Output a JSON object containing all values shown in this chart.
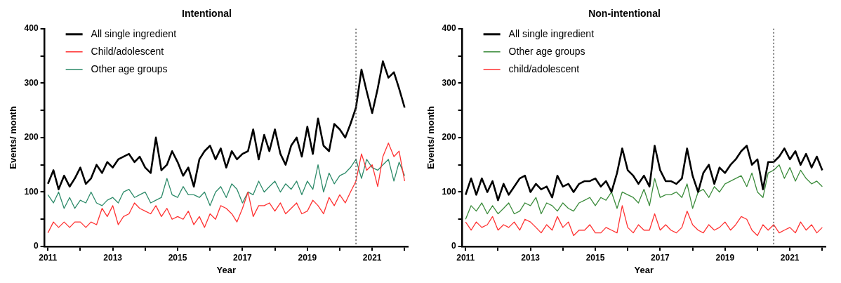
{
  "chart_data": [
    {
      "type": "line",
      "title": "Intentional",
      "xlabel": "Year",
      "ylabel": "Events/ month",
      "xlim": [
        2010.9,
        2022.1
      ],
      "ylim": [
        0,
        400
      ],
      "xticks": [
        2011,
        {
          "value": 2012,
          "label": null
        },
        2013,
        {
          "value": 2014,
          "label": null
        },
        2015,
        {
          "value": 2016,
          "label": null
        },
        2017,
        {
          "value": 2018,
          "label": null
        },
        2019,
        {
          "value": 2020,
          "label": null
        },
        2021,
        {
          "value": 2022,
          "label": null
        }
      ],
      "yticks": [
        0,
        {
          "value": 50,
          "label": null
        },
        100,
        {
          "value": 150,
          "label": null
        },
        200,
        {
          "value": 250,
          "label": null
        },
        300,
        {
          "value": 350,
          "label": null
        },
        400
      ],
      "grid": false,
      "legend": "top left",
      "line_style": "solid",
      "marker": "none",
      "ref_lines": [
        {
          "axis": "x",
          "value": 2020.5,
          "label": null,
          "color": "#555555",
          "line_style": "dotted"
        }
      ],
      "x": [
        2011,
        2011.17,
        2011.33,
        2011.5,
        2011.67,
        2011.83,
        2012,
        2012.17,
        2012.33,
        2012.5,
        2012.67,
        2012.83,
        2013,
        2013.17,
        2013.33,
        2013.5,
        2013.67,
        2013.83,
        2014,
        2014.17,
        2014.33,
        2014.5,
        2014.67,
        2014.83,
        2015,
        2015.17,
        2015.33,
        2015.5,
        2015.67,
        2015.83,
        2016,
        2016.17,
        2016.33,
        2016.5,
        2016.67,
        2016.83,
        2017,
        2017.17,
        2017.33,
        2017.5,
        2017.67,
        2017.83,
        2018,
        2018.17,
        2018.33,
        2018.5,
        2018.67,
        2018.83,
        2019,
        2019.17,
        2019.33,
        2019.5,
        2019.67,
        2019.83,
        2020,
        2020.17,
        2020.33,
        2020.5,
        2020.67,
        2020.83,
        2021,
        2021.17,
        2021.33,
        2021.5,
        2021.67,
        2021.83,
        2022
      ],
      "series": [
        {
          "name": "All single ingredient",
          "color": "#000000",
          "values": [
            115,
            140,
            105,
            130,
            110,
            125,
            145,
            115,
            125,
            150,
            135,
            155,
            145,
            160,
            165,
            170,
            155,
            165,
            145,
            135,
            200,
            140,
            150,
            175,
            155,
            130,
            145,
            110,
            160,
            175,
            185,
            160,
            180,
            145,
            175,
            160,
            170,
            175,
            215,
            160,
            205,
            175,
            215,
            170,
            150,
            185,
            200,
            165,
            220,
            170,
            235,
            185,
            175,
            225,
            215,
            200,
            225,
            255,
            325,
            285,
            245,
            290,
            340,
            310,
            320,
            290,
            255
          ]
        },
        {
          "name": "Child/adolescent",
          "color": "#ff3333",
          "values": [
            25,
            45,
            35,
            45,
            35,
            45,
            45,
            35,
            45,
            40,
            70,
            55,
            75,
            40,
            55,
            60,
            80,
            70,
            65,
            60,
            75,
            55,
            70,
            50,
            55,
            50,
            65,
            40,
            55,
            35,
            60,
            50,
            75,
            70,
            60,
            45,
            70,
            100,
            55,
            75,
            75,
            80,
            65,
            80,
            60,
            70,
            80,
            60,
            65,
            85,
            75,
            60,
            90,
            75,
            95,
            80,
            100,
            120,
            170,
            140,
            150,
            110,
            165,
            190,
            165,
            175,
            120
          ]
        },
        {
          "name": "Other age groups",
          "color": "#2e8b6a",
          "values": [
            95,
            80,
            100,
            70,
            90,
            70,
            85,
            80,
            100,
            80,
            75,
            85,
            90,
            80,
            100,
            105,
            90,
            95,
            100,
            80,
            85,
            90,
            125,
            95,
            90,
            110,
            95,
            95,
            90,
            100,
            75,
            100,
            110,
            90,
            115,
            105,
            80,
            100,
            95,
            120,
            100,
            110,
            120,
            100,
            115,
            105,
            120,
            95,
            120,
            105,
            150,
            100,
            135,
            115,
            130,
            135,
            145,
            160,
            125,
            160,
            145,
            140,
            150,
            160,
            120,
            155,
            130
          ]
        }
      ]
    },
    {
      "type": "line",
      "title": "Non-intentional",
      "xlabel": "Year",
      "ylabel": "Events/ month",
      "xlim": [
        2010.9,
        2022.1
      ],
      "ylim": [
        0,
        400
      ],
      "xticks": [
        2011,
        {
          "value": 2012,
          "label": null
        },
        2013,
        {
          "value": 2014,
          "label": null
        },
        2015,
        {
          "value": 2016,
          "label": null
        },
        2017,
        {
          "value": 2018,
          "label": null
        },
        2019,
        {
          "value": 2020,
          "label": null
        },
        2021,
        {
          "value": 2022,
          "label": null
        }
      ],
      "yticks": [
        0,
        {
          "value": 50,
          "label": null
        },
        100,
        {
          "value": 150,
          "label": null
        },
        200,
        {
          "value": 250,
          "label": null
        },
        300,
        {
          "value": 350,
          "label": null
        },
        400
      ],
      "grid": false,
      "legend": "top left",
      "line_style": "solid",
      "marker": "none",
      "ref_lines": [
        {
          "axis": "x",
          "value": 2020.5,
          "label": null,
          "color": "#555555",
          "line_style": "dotted"
        }
      ],
      "x": [
        2011,
        2011.17,
        2011.33,
        2011.5,
        2011.67,
        2011.83,
        2012,
        2012.17,
        2012.33,
        2012.5,
        2012.67,
        2012.83,
        2013,
        2013.17,
        2013.33,
        2013.5,
        2013.67,
        2013.83,
        2014,
        2014.17,
        2014.33,
        2014.5,
        2014.67,
        2014.83,
        2015,
        2015.17,
        2015.33,
        2015.5,
        2015.67,
        2015.83,
        2016,
        2016.17,
        2016.33,
        2016.5,
        2016.67,
        2016.83,
        2017,
        2017.17,
        2017.33,
        2017.5,
        2017.67,
        2017.83,
        2018,
        2018.17,
        2018.33,
        2018.5,
        2018.67,
        2018.83,
        2019,
        2019.17,
        2019.33,
        2019.5,
        2019.67,
        2019.83,
        2020,
        2020.17,
        2020.33,
        2020.5,
        2020.67,
        2020.83,
        2021,
        2021.17,
        2021.33,
        2021.5,
        2021.67,
        2021.83,
        2022
      ],
      "series": [
        {
          "name": "All single ingredient",
          "color": "#000000",
          "values": [
            95,
            125,
            95,
            125,
            100,
            120,
            85,
            115,
            95,
            110,
            125,
            130,
            100,
            115,
            105,
            110,
            90,
            130,
            110,
            115,
            100,
            115,
            120,
            120,
            125,
            110,
            120,
            100,
            135,
            180,
            140,
            130,
            115,
            130,
            110,
            185,
            140,
            120,
            120,
            115,
            125,
            180,
            130,
            100,
            135,
            150,
            115,
            145,
            135,
            150,
            160,
            175,
            185,
            150,
            160,
            105,
            155,
            155,
            165,
            180,
            160,
            175,
            150,
            170,
            145,
            165,
            140
          ]
        },
        {
          "name": "Other age groups",
          "color": "#3c8c3c",
          "values": [
            50,
            75,
            65,
            80,
            60,
            75,
            60,
            70,
            80,
            60,
            65,
            80,
            75,
            90,
            60,
            80,
            75,
            65,
            80,
            70,
            65,
            80,
            85,
            90,
            75,
            90,
            85,
            100,
            70,
            100,
            95,
            90,
            80,
            105,
            75,
            125,
            90,
            95,
            95,
            100,
            90,
            115,
            70,
            100,
            105,
            90,
            110,
            100,
            115,
            120,
            125,
            130,
            110,
            135,
            100,
            90,
            135,
            140,
            150,
            125,
            145,
            120,
            140,
            125,
            115,
            120,
            110
          ]
        },
        {
          "name": "child/adolescent",
          "color": "#ff3333",
          "values": [
            45,
            30,
            45,
            35,
            40,
            55,
            30,
            40,
            35,
            45,
            30,
            50,
            45,
            35,
            25,
            40,
            30,
            55,
            35,
            45,
            20,
            30,
            30,
            40,
            25,
            25,
            35,
            30,
            25,
            75,
            35,
            25,
            40,
            30,
            30,
            60,
            30,
            40,
            30,
            25,
            35,
            65,
            40,
            30,
            25,
            40,
            30,
            35,
            45,
            30,
            40,
            55,
            50,
            30,
            20,
            40,
            30,
            40,
            25,
            30,
            35,
            25,
            45,
            30,
            40,
            25,
            35
          ]
        }
      ]
    }
  ]
}
